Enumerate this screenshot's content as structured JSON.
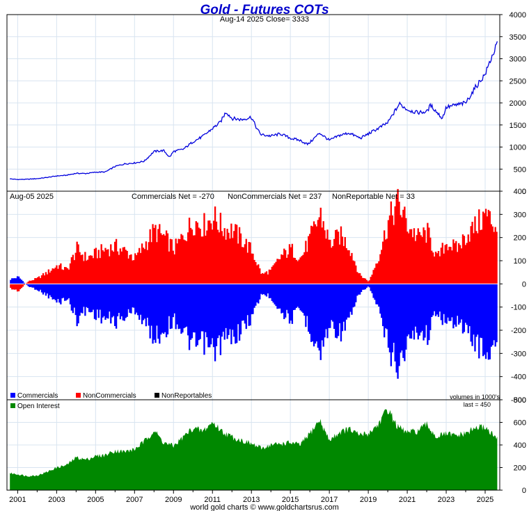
{
  "title": "Gold - Futures COTs",
  "subtitle": "Aug-14  2025   Close= 3333",
  "footer": "world gold charts © www.goldchartsrus.com",
  "colors": {
    "price": "#0000dd",
    "commercials": "#0000ff",
    "noncommercials": "#ff0000",
    "nonreportables": "#000000",
    "open_interest": "#008800",
    "grid": "#d8e4f0",
    "title": "#0000cc"
  },
  "panels": {
    "cot": {
      "date_label": "Aug-05  2025",
      "stats": [
        "Commercials Net = -270",
        "NonCommercials Net = 237",
        "NonReportable Net = 33"
      ],
      "legend": [
        "Commercials",
        "NonCommercials",
        "NonReportables"
      ],
      "volume_note": "volumes in 1000's"
    },
    "oi": {
      "legend": "Open Interest",
      "last_note": "last = 450"
    }
  },
  "chart_data": [
    {
      "type": "line",
      "name": "price",
      "ylim": [
        0,
        4000
      ],
      "yticks": [
        0,
        500,
        1000,
        1500,
        2000,
        2500,
        3000,
        3500,
        4000
      ],
      "x": [
        2000.6,
        2001.0,
        2001.5,
        2002.0,
        2002.5,
        2003.0,
        2003.5,
        2004.0,
        2004.5,
        2005.0,
        2005.5,
        2006.0,
        2006.5,
        2007.0,
        2007.5,
        2008.0,
        2008.5,
        2008.8,
        2009.0,
        2009.5,
        2010.0,
        2010.5,
        2011.0,
        2011.4,
        2011.7,
        2012.0,
        2012.5,
        2013.0,
        2013.3,
        2013.5,
        2014.0,
        2014.5,
        2015.0,
        2015.5,
        2015.9,
        2016.5,
        2017.0,
        2017.5,
        2018.0,
        2018.6,
        2019.0,
        2019.5,
        2020.0,
        2020.6,
        2021.0,
        2021.5,
        2022.0,
        2022.2,
        2022.8,
        2023.0,
        2023.5,
        2024.0,
        2024.5,
        2025.0,
        2025.3,
        2025.62
      ],
      "values": [
        280,
        265,
        270,
        285,
        310,
        345,
        360,
        405,
        400,
        430,
        435,
        560,
        620,
        640,
        680,
        900,
        920,
        770,
        900,
        950,
        1120,
        1240,
        1420,
        1560,
        1800,
        1650,
        1620,
        1680,
        1400,
        1280,
        1250,
        1300,
        1200,
        1150,
        1060,
        1320,
        1150,
        1260,
        1320,
        1200,
        1300,
        1420,
        1550,
        1980,
        1850,
        1780,
        1800,
        1950,
        1650,
        1900,
        1950,
        2000,
        2350,
        2650,
        3000,
        3333
      ]
    },
    {
      "type": "area",
      "name": "cot",
      "ylim": [
        -500,
        400
      ],
      "yticks": [
        -500,
        -400,
        -300,
        -200,
        -100,
        0,
        100,
        200,
        300,
        400
      ],
      "x": [
        2000.6,
        2001.0,
        2001.5,
        2002.0,
        2002.5,
        2003.0,
        2003.5,
        2004.0,
        2004.5,
        2005.0,
        2005.5,
        2006.0,
        2006.5,
        2007.0,
        2007.5,
        2008.0,
        2008.5,
        2009.0,
        2009.5,
        2010.0,
        2010.5,
        2011.0,
        2011.5,
        2012.0,
        2012.5,
        2013.0,
        2013.5,
        2014.0,
        2014.5,
        2015.0,
        2015.5,
        2016.0,
        2016.5,
        2017.0,
        2017.5,
        2018.0,
        2018.5,
        2019.0,
        2019.5,
        2020.0,
        2020.5,
        2021.0,
        2021.5,
        2022.0,
        2022.5,
        2023.0,
        2023.5,
        2024.0,
        2024.5,
        2025.0,
        2025.62
      ],
      "series": [
        {
          "name": "Commercials",
          "values": [
            20,
            30,
            -10,
            -25,
            -50,
            -80,
            -60,
            -150,
            -110,
            -130,
            -150,
            -160,
            -140,
            -110,
            -170,
            -230,
            -200,
            -150,
            -210,
            -270,
            -250,
            -290,
            -240,
            -230,
            -190,
            -140,
            -40,
            -60,
            -120,
            -150,
            -110,
            -200,
            -300,
            -170,
            -210,
            -160,
            -40,
            -10,
            -120,
            -270,
            -350,
            -250,
            -200,
            -220,
            -110,
            -180,
            -150,
            -210,
            -250,
            -300,
            -270
          ]
        },
        {
          "name": "NonCommercials",
          "values": [
            -20,
            -30,
            10,
            25,
            50,
            80,
            60,
            150,
            110,
            130,
            150,
            160,
            140,
            110,
            170,
            230,
            200,
            150,
            210,
            270,
            250,
            290,
            240,
            230,
            190,
            140,
            40,
            60,
            120,
            150,
            110,
            200,
            300,
            170,
            210,
            160,
            40,
            10,
            120,
            270,
            350,
            250,
            200,
            220,
            110,
            180,
            150,
            210,
            250,
            300,
            237
          ]
        }
      ]
    },
    {
      "type": "area",
      "name": "open_interest",
      "ylim": [
        0,
        800
      ],
      "yticks": [
        0,
        200,
        400,
        600,
        800
      ],
      "xlim": [
        2000.45,
        2025.75
      ],
      "xticks": [
        2001,
        2003,
        2005,
        2007,
        2009,
        2011,
        2013,
        2015,
        2017,
        2019,
        2021,
        2023,
        2025
      ],
      "x": [
        2000.6,
        2001.0,
        2001.5,
        2002.0,
        2002.5,
        2003.0,
        2003.5,
        2004.0,
        2004.5,
        2005.0,
        2005.5,
        2006.0,
        2006.5,
        2007.0,
        2007.5,
        2008.0,
        2008.5,
        2009.0,
        2009.5,
        2010.0,
        2010.5,
        2011.0,
        2011.5,
        2012.0,
        2012.5,
        2013.0,
        2013.5,
        2014.0,
        2014.5,
        2015.0,
        2015.5,
        2016.0,
        2016.5,
        2017.0,
        2017.5,
        2018.0,
        2018.5,
        2019.0,
        2019.5,
        2020.0,
        2020.5,
        2021.0,
        2021.5,
        2022.0,
        2022.5,
        2023.0,
        2023.5,
        2024.0,
        2024.5,
        2025.0,
        2025.62
      ],
      "values": [
        150,
        140,
        125,
        130,
        160,
        200,
        220,
        290,
        270,
        300,
        310,
        350,
        340,
        360,
        430,
        530,
        420,
        390,
        470,
        550,
        520,
        600,
        520,
        470,
        440,
        410,
        370,
        400,
        410,
        420,
        400,
        500,
        620,
        440,
        510,
        540,
        490,
        500,
        580,
        720,
        560,
        510,
        520,
        580,
        470,
        500,
        480,
        500,
        550,
        560,
        450
      ]
    }
  ]
}
